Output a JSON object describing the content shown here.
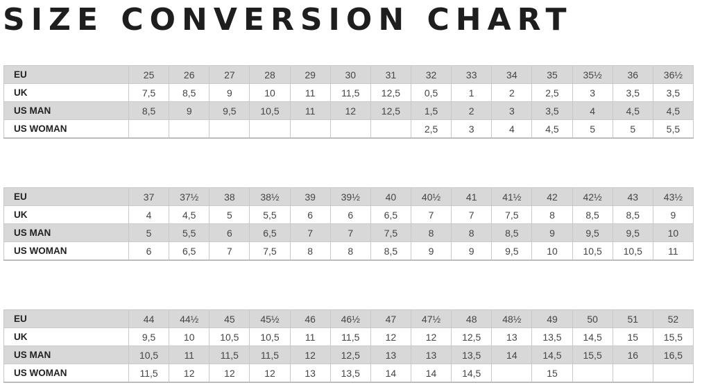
{
  "title": "SIZE CONVERSION CHART",
  "tables": [
    {
      "rows": [
        {
          "label": "EU",
          "values": [
            "25",
            "26",
            "27",
            "28",
            "29",
            "30",
            "31",
            "32",
            "33",
            "34",
            "35",
            "35½",
            "36",
            "36½"
          ]
        },
        {
          "label": "UK",
          "values": [
            "7,5",
            "8,5",
            "9",
            "10",
            "11",
            "11,5",
            "12,5",
            "0,5",
            "1",
            "2",
            "2,5",
            "3",
            "3,5",
            "3,5"
          ]
        },
        {
          "label": "US MAN",
          "values": [
            "8,5",
            "9",
            "9,5",
            "10,5",
            "11",
            "12",
            "12,5",
            "1,5",
            "2",
            "3",
            "3,5",
            "4",
            "4,5",
            "4,5"
          ]
        },
        {
          "label": "US WOMAN",
          "values": [
            "",
            "",
            "",
            "",
            "",
            "",
            "",
            "2,5",
            "3",
            "4",
            "4,5",
            "5",
            "5",
            "5,5"
          ]
        }
      ]
    },
    {
      "rows": [
        {
          "label": "EU",
          "values": [
            "37",
            "37½",
            "38",
            "38½",
            "39",
            "39½",
            "40",
            "40½",
            "41",
            "41½",
            "42",
            "42½",
            "43",
            "43½"
          ]
        },
        {
          "label": "UK",
          "values": [
            "4",
            "4,5",
            "5",
            "5,5",
            "6",
            "6",
            "6,5",
            "7",
            "7",
            "7,5",
            "8",
            "8,5",
            "8,5",
            "9"
          ]
        },
        {
          "label": "US MAN",
          "values": [
            "5",
            "5,5",
            "6",
            "6,5",
            "7",
            "7",
            "7,5",
            "8",
            "8",
            "8,5",
            "9",
            "9,5",
            "9,5",
            "10"
          ]
        },
        {
          "label": "US WOMAN",
          "values": [
            "6",
            "6,5",
            "7",
            "7,5",
            "8",
            "8",
            "8,5",
            "9",
            "9",
            "9,5",
            "10",
            "10,5",
            "10,5",
            "11"
          ]
        }
      ]
    },
    {
      "rows": [
        {
          "label": "EU",
          "values": [
            "44",
            "44½",
            "45",
            "45½",
            "46",
            "46½",
            "47",
            "47½",
            "48",
            "48½",
            "49",
            "50",
            "51",
            "52"
          ]
        },
        {
          "label": "UK",
          "values": [
            "9,5",
            "10",
            "10,5",
            "10,5",
            "11",
            "11,5",
            "12",
            "12",
            "12,5",
            "13",
            "13,5",
            "14,5",
            "15",
            "15,5"
          ]
        },
        {
          "label": "US MAN",
          "values": [
            "10,5",
            "11",
            "11,5",
            "11,5",
            "12",
            "12,5",
            "13",
            "13",
            "13,5",
            "14",
            "14,5",
            "15,5",
            "16",
            "16,5"
          ]
        },
        {
          "label": "US WOMAN",
          "values": [
            "11,5",
            "12",
            "12",
            "12",
            "13",
            "13,5",
            "14",
            "14",
            "14,5",
            "",
            "15",
            "",
            "",
            ""
          ]
        }
      ]
    }
  ]
}
